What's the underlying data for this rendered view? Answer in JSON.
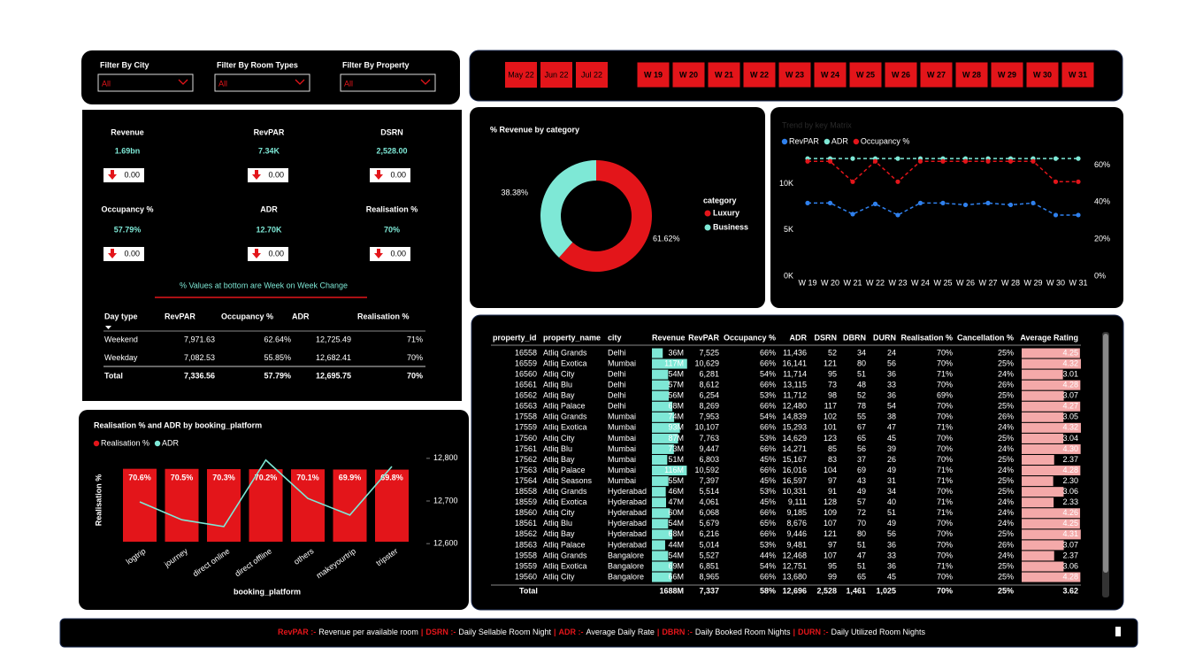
{
  "filters": [
    {
      "label": "Filter By City",
      "value": "All"
    },
    {
      "label": "Filter By Room Types",
      "value": "All"
    },
    {
      "label": "Filter By Property",
      "value": "All"
    }
  ],
  "month_buttons": [
    "May 22",
    "Jun 22",
    "Jul 22"
  ],
  "week_buttons": [
    "W 19",
    "W 20",
    "W 21",
    "W 22",
    "W 23",
    "W 24",
    "W 25",
    "W 26",
    "W 27",
    "W 28",
    "W 29",
    "W 30",
    "W 31"
  ],
  "kpis": [
    {
      "label": "Revenue",
      "value": "1.69bn",
      "change": "0.00"
    },
    {
      "label": "RevPAR",
      "value": "7.34K",
      "change": "0.00"
    },
    {
      "label": "DSRN",
      "value": "2,528.00",
      "change": "0.00"
    },
    {
      "label": "Occupancy %",
      "value": "57.79%",
      "change": "0.00"
    },
    {
      "label": "ADR",
      "value": "12.70K",
      "change": "0.00"
    },
    {
      "label": "Realisation %",
      "value": "70%",
      "change": "0.00"
    }
  ],
  "kpi_note": "% Values at bottom are Week on Week Change",
  "day_type_table": {
    "header": [
      "Day type",
      "RevPAR",
      "Occupancy %",
      "ADR",
      "Realisation %"
    ],
    "rows": [
      [
        "Weekend",
        "7,971.63",
        "62.64%",
        "12,725.49",
        "71%"
      ],
      [
        "Weekday",
        "7,082.53",
        "55.85%",
        "12,682.41",
        "70%"
      ]
    ],
    "total": [
      "Total",
      "7,336.56",
      "57.79%",
      "12,695.75",
      "70%"
    ]
  },
  "chart_data": [
    {
      "type": "pie",
      "title": "% Revenue by category",
      "legend_title": "category",
      "categories": [
        "Luxury",
        "Business"
      ],
      "values": [
        61.62,
        38.38
      ],
      "value_labels": [
        "61.62%",
        "38.38%"
      ],
      "colors": [
        "#e3151a",
        "#7ee8d6"
      ]
    },
    {
      "type": "line",
      "title": "Trend by key Matrix",
      "categories": [
        "W 19",
        "W 20",
        "W 21",
        "W 22",
        "W 23",
        "W 24",
        "W 25",
        "W 26",
        "W 27",
        "W 28",
        "W 29",
        "W 30",
        "W 31"
      ],
      "series": [
        {
          "name": "RevPAR",
          "color": "#2f80ed",
          "values": [
            7900,
            7900,
            6700,
            7800,
            6600,
            7900,
            7900,
            7700,
            7900,
            7700,
            7900,
            6600,
            6600
          ]
        },
        {
          "name": "ADR",
          "color": "#7ee8d6",
          "values": [
            12700,
            12700,
            12700,
            12700,
            12700,
            12700,
            12700,
            12700,
            12700,
            12700,
            12700,
            12700,
            12700
          ]
        },
        {
          "name": "Occupancy %",
          "color": "#e3151a",
          "axis": "y2",
          "values": [
            62,
            62,
            51,
            62,
            51,
            62,
            62,
            62,
            62,
            62,
            62,
            51,
            51
          ]
        }
      ],
      "ylim": [
        0,
        13000
      ],
      "yticks": [
        {
          "value": 0,
          "label": "0K"
        },
        {
          "value": 5000,
          "label": "5K"
        },
        {
          "value": 10000,
          "label": "10K"
        }
      ],
      "y2lim": [
        0,
        65
      ],
      "y2ticks": [
        {
          "value": 0,
          "label": "0%"
        },
        {
          "value": 20,
          "label": "20%"
        },
        {
          "value": 40,
          "label": "40%"
        },
        {
          "value": 60,
          "label": "60%"
        }
      ]
    },
    {
      "type": "combo",
      "title": "Realisation % and ADR by booking_platform",
      "x_label": "booking_platform",
      "y_label": "Realisation %",
      "categories": [
        "logtrip",
        "journey",
        "direct online",
        "direct offline",
        "others",
        "makeyourtrip",
        "tripster"
      ],
      "series": [
        {
          "name": "Realisation %",
          "color": "#e3151a",
          "values": [
            70.6,
            70.5,
            70.3,
            70.2,
            70.1,
            69.9,
            69.8
          ],
          "value_labels": [
            "70.6%",
            "70.5%",
            "70.3%",
            "70.2%",
            "70.1%",
            "69.9%",
            "69.8%"
          ]
        },
        {
          "name": "ADR",
          "color": "#7ee8d6",
          "axis": "y2",
          "values": [
            12698,
            12656,
            12640,
            12796,
            12706,
            12667,
            12781
          ]
        }
      ],
      "ylim": [
        0,
        72
      ],
      "y2lim": [
        12590,
        12810
      ],
      "y2ticks": [
        {
          "value": 12600,
          "label": "12,600"
        },
        {
          "value": 12700,
          "label": "12,700"
        },
        {
          "value": 12800,
          "label": "12,800"
        }
      ]
    }
  ],
  "property_table": {
    "header": [
      "property_id",
      "property_name",
      "city",
      "Revenue",
      "RevPAR",
      "Occupancy %",
      "ADR",
      "DSRN",
      "DBRN",
      "DURN",
      "Realisation %",
      "Cancellation %",
      "Average Rating"
    ],
    "rows": [
      [
        "16558",
        "Atliq Grands",
        "Delhi",
        "36M",
        "7,525",
        "66%",
        "11,436",
        "52",
        "34",
        "24",
        "70%",
        "25%",
        "4.25"
      ],
      [
        "16559",
        "Atliq Exotica",
        "Mumbai",
        "117M",
        "10,629",
        "66%",
        "16,141",
        "121",
        "80",
        "56",
        "70%",
        "25%",
        "4.32"
      ],
      [
        "16560",
        "Atliq City",
        "Delhi",
        "54M",
        "6,281",
        "54%",
        "11,714",
        "95",
        "51",
        "36",
        "71%",
        "24%",
        "3.01"
      ],
      [
        "16561",
        "Atliq Blu",
        "Delhi",
        "57M",
        "8,612",
        "66%",
        "13,115",
        "73",
        "48",
        "33",
        "70%",
        "26%",
        "4.28"
      ],
      [
        "16562",
        "Atliq Bay",
        "Delhi",
        "56M",
        "6,254",
        "53%",
        "11,712",
        "98",
        "52",
        "36",
        "69%",
        "25%",
        "3.07"
      ],
      [
        "16563",
        "Atliq Palace",
        "Delhi",
        "68M",
        "8,269",
        "66%",
        "12,480",
        "117",
        "78",
        "54",
        "70%",
        "25%",
        "4.27"
      ],
      [
        "17558",
        "Atliq Grands",
        "Mumbai",
        "74M",
        "7,953",
        "54%",
        "14,839",
        "102",
        "55",
        "38",
        "70%",
        "26%",
        "3.05"
      ],
      [
        "17559",
        "Atliq Exotica",
        "Mumbai",
        "93M",
        "10,107",
        "66%",
        "15,293",
        "101",
        "67",
        "47",
        "71%",
        "24%",
        "4.32"
      ],
      [
        "17560",
        "Atliq City",
        "Mumbai",
        "87M",
        "7,763",
        "53%",
        "14,629",
        "123",
        "65",
        "45",
        "70%",
        "25%",
        "3.04"
      ],
      [
        "17561",
        "Atliq Blu",
        "Mumbai",
        "73M",
        "9,447",
        "66%",
        "14,271",
        "85",
        "56",
        "39",
        "70%",
        "24%",
        "4.30"
      ],
      [
        "17562",
        "Atliq Bay",
        "Mumbai",
        "51M",
        "6,803",
        "45%",
        "15,167",
        "83",
        "37",
        "26",
        "70%",
        "25%",
        "2.37"
      ],
      [
        "17563",
        "Atliq Palace",
        "Mumbai",
        "116M",
        "10,592",
        "66%",
        "16,016",
        "104",
        "69",
        "49",
        "71%",
        "24%",
        "4.28"
      ],
      [
        "17564",
        "Atliq Seasons",
        "Mumbai",
        "55M",
        "7,397",
        "45%",
        "16,597",
        "97",
        "43",
        "31",
        "71%",
        "25%",
        "2.30"
      ],
      [
        "18558",
        "Atliq Grands",
        "Hyderabad",
        "46M",
        "5,514",
        "53%",
        "10,331",
        "91",
        "49",
        "34",
        "70%",
        "25%",
        "3.06"
      ],
      [
        "18559",
        "Atliq Exotica",
        "Hyderabad",
        "47M",
        "4,061",
        "45%",
        "9,111",
        "128",
        "57",
        "40",
        "71%",
        "24%",
        "2.33"
      ],
      [
        "18560",
        "Atliq City",
        "Hyderabad",
        "60M",
        "6,068",
        "66%",
        "9,185",
        "109",
        "72",
        "51",
        "71%",
        "24%",
        "4.26"
      ],
      [
        "18561",
        "Atliq Blu",
        "Hyderabad",
        "54M",
        "5,679",
        "65%",
        "8,676",
        "107",
        "70",
        "49",
        "70%",
        "24%",
        "4.25"
      ],
      [
        "18562",
        "Atliq Bay",
        "Hyderabad",
        "68M",
        "6,216",
        "66%",
        "9,446",
        "121",
        "80",
        "56",
        "70%",
        "25%",
        "4.31"
      ],
      [
        "18563",
        "Atliq Palace",
        "Hyderabad",
        "44M",
        "5,014",
        "53%",
        "9,481",
        "97",
        "51",
        "36",
        "70%",
        "26%",
        "3.07"
      ],
      [
        "19558",
        "Atliq Grands",
        "Bangalore",
        "54M",
        "5,527",
        "44%",
        "12,468",
        "107",
        "47",
        "33",
        "70%",
        "24%",
        "2.37"
      ],
      [
        "19559",
        "Atliq Exotica",
        "Bangalore",
        "69M",
        "6,851",
        "54%",
        "12,751",
        "95",
        "51",
        "36",
        "71%",
        "25%",
        "3.06"
      ],
      [
        "19560",
        "Atliq City",
        "Bangalore",
        "66M",
        "8,965",
        "66%",
        "13,680",
        "99",
        "65",
        "45",
        "70%",
        "25%",
        "4.28"
      ]
    ],
    "total": [
      "Total",
      "",
      "",
      "1688M",
      "7,337",
      "58%",
      "12,696",
      "2,528",
      "1,461",
      "1,025",
      "70%",
      "25%",
      "3.62"
    ]
  },
  "footer": {
    "separator": "|",
    "items": [
      {
        "key": "RevPAR :-",
        "text": "Revenue per available room"
      },
      {
        "key": "DSRN :-",
        "text": "Daily Sellable Room Night"
      },
      {
        "key": "ADR :-",
        "text": "Average Daily Rate"
      },
      {
        "key": "DBRN :-",
        "text": "Daily Booked Room Nights"
      },
      {
        "key": "DURN :-",
        "text": "Daily Utilized Room Nights"
      }
    ]
  }
}
